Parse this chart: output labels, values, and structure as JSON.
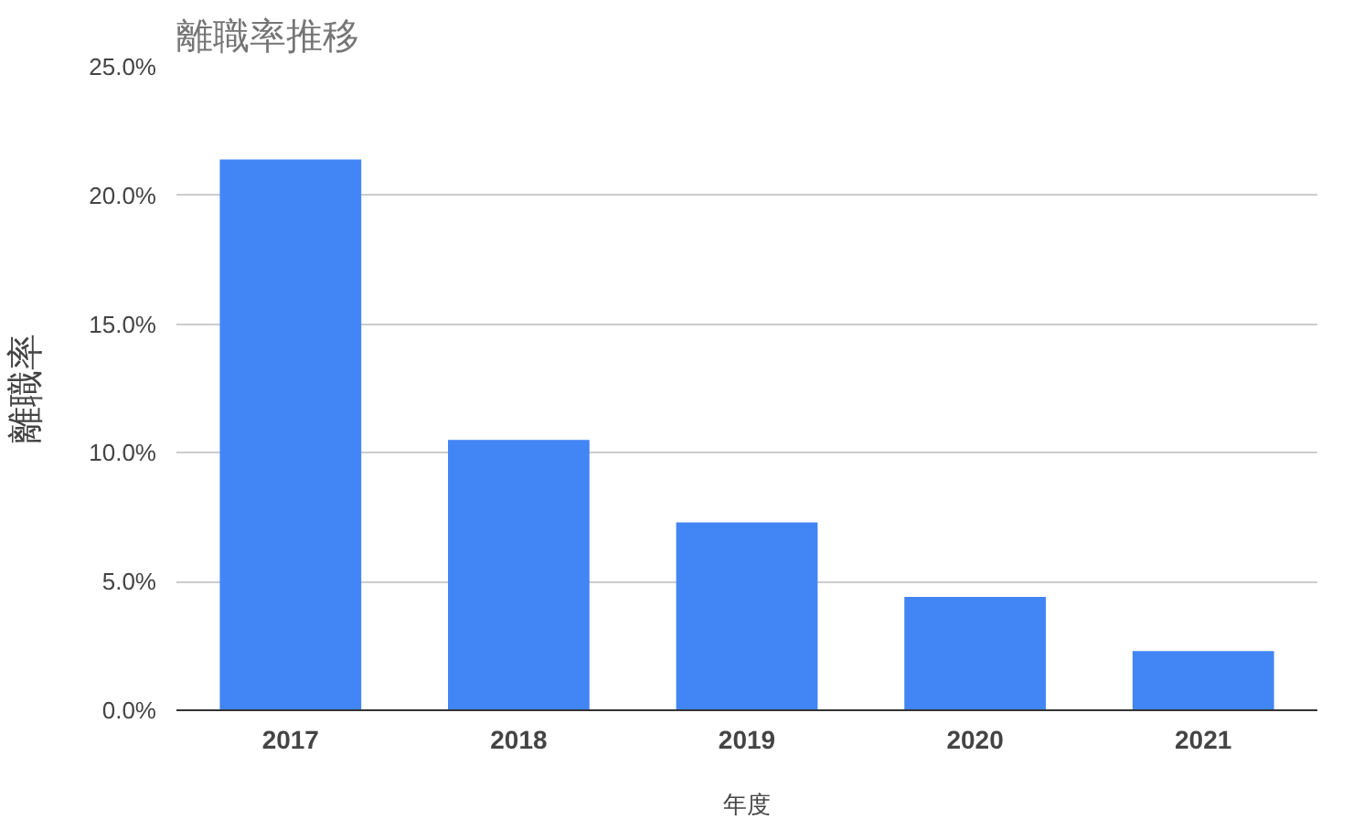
{
  "chart_data": {
    "type": "bar",
    "title": "離職率推移",
    "xlabel": "年度",
    "ylabel": "離職率",
    "categories": [
      "2017",
      "2018",
      "2019",
      "2020",
      "2021"
    ],
    "values": [
      21.4,
      10.5,
      7.3,
      4.4,
      2.3
    ],
    "color": "#4285f4",
    "ylim": [
      0,
      25
    ],
    "yticks": [
      {
        "value": 0,
        "label": "0.0%"
      },
      {
        "value": 5,
        "label": "5.0%"
      },
      {
        "value": 10,
        "label": "10.0%"
      },
      {
        "value": 15,
        "label": "15.0%"
      },
      {
        "value": 20,
        "label": "20.0%"
      },
      {
        "value": 25,
        "label": "25.0%"
      }
    ],
    "grid": "y"
  }
}
